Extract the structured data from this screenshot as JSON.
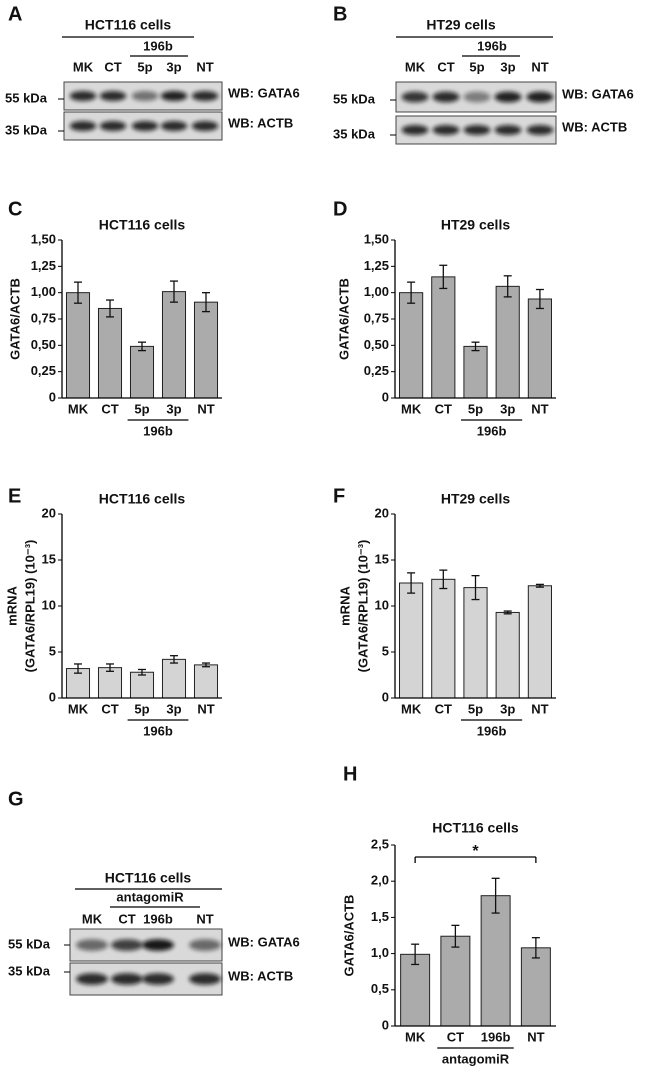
{
  "chart_data": [
    {
      "type": "bar",
      "panel": "C",
      "title": "HCT116 cells",
      "y_label": [
        "GATA6/ACTB"
      ],
      "categories": [
        "MK",
        "CT",
        "5p",
        "3p",
        "NT"
      ],
      "category_group": "196b",
      "values": [
        1.0,
        0.85,
        0.49,
        1.01,
        0.91
      ],
      "errors": [
        0.1,
        0.08,
        0.04,
        0.1,
        0.09
      ],
      "color": "#ababab",
      "ylim": [
        0,
        1.5
      ],
      "yticks": [
        0,
        {
          "value": 0.25,
          "label": "0,25"
        },
        {
          "value": 0.5,
          "label": "0,50"
        },
        {
          "value": 0.75,
          "label": "0,75"
        },
        {
          "value": 1.0,
          "label": "1,00"
        },
        {
          "value": 1.25,
          "label": "1,25"
        },
        {
          "value": 1.5,
          "label": "1,50"
        }
      ]
    },
    {
      "type": "bar",
      "panel": "D",
      "title": "HT29 cells",
      "y_label": [
        "GATA6/ACTB"
      ],
      "categories": [
        "MK",
        "CT",
        "5p",
        "3p",
        "NT"
      ],
      "category_group": "196b",
      "values": [
        1.0,
        1.15,
        0.49,
        1.06,
        0.94
      ],
      "errors": [
        0.1,
        0.11,
        0.04,
        0.1,
        0.09
      ],
      "color": "#ababab",
      "ylim": [
        0,
        1.5
      ],
      "yticks": [
        0,
        {
          "value": 0.25,
          "label": "0,25"
        },
        {
          "value": 0.5,
          "label": "0,50"
        },
        {
          "value": 0.75,
          "label": "0,75"
        },
        {
          "value": 1.0,
          "label": "1,00"
        },
        {
          "value": 1.25,
          "label": "1,25"
        },
        {
          "value": 1.5,
          "label": "1,50"
        }
      ]
    },
    {
      "type": "bar",
      "panel": "E",
      "title": "HCT116 cells",
      "y_label": [
        "mRNA",
        "(GATA6/RPL19) (10⁻³)"
      ],
      "categories": [
        "MK",
        "CT",
        "5p",
        "3p",
        "NT"
      ],
      "category_group": "196b",
      "values": [
        3.2,
        3.3,
        2.8,
        4.2,
        3.6
      ],
      "errors": [
        0.5,
        0.4,
        0.3,
        0.4,
        0.2
      ],
      "color": "#d4d4d4",
      "ylim": [
        0,
        20
      ],
      "yticks": [
        0,
        5,
        10,
        15,
        20
      ]
    },
    {
      "type": "bar",
      "panel": "F",
      "title": "HT29 cells",
      "y_label": [
        "mRNA",
        "(GATA6/RPL19) (10⁻³)"
      ],
      "categories": [
        "MK",
        "CT",
        "5p",
        "3p",
        "NT"
      ],
      "category_group": "196b",
      "values": [
        12.5,
        12.9,
        12.0,
        9.3,
        12.2
      ],
      "errors": [
        1.1,
        1.0,
        1.3,
        0.15,
        0.15
      ],
      "color": "#d4d4d4",
      "ylim": [
        0,
        20
      ],
      "yticks": [
        0,
        5,
        10,
        15,
        20
      ]
    },
    {
      "type": "bar",
      "panel": "H",
      "title": "HCT116 cells",
      "y_label": [
        "GATA6/ACTB"
      ],
      "categories": [
        "MK",
        "CT",
        "196b",
        "NT"
      ],
      "category_group": "antagomiR",
      "values": [
        0.99,
        1.24,
        1.8,
        1.08
      ],
      "errors": [
        0.14,
        0.15,
        0.24,
        0.14
      ],
      "color": "#ababab",
      "significance": "*",
      "ylim": [
        0,
        2.5
      ],
      "yticks": [
        0,
        {
          "value": 0.5,
          "label": "0,5"
        },
        {
          "value": 1.0,
          "label": "1,0"
        },
        {
          "value": 1.5,
          "label": "1,5"
        },
        {
          "value": 2.0,
          "label": "2,0"
        },
        {
          "value": 2.5,
          "label": "2,5"
        }
      ]
    }
  ],
  "blots": [
    {
      "panel": "A",
      "title": "HCT116 cells",
      "group": "196b",
      "lanes": [
        "MK",
        "CT",
        "5p",
        "3p",
        "NT"
      ],
      "markers": [
        "55 kDa",
        "35 kDa"
      ],
      "probes": [
        "WB: GATA6",
        "WB: ACTB"
      ]
    },
    {
      "panel": "B",
      "title": "HT29 cells",
      "group": "196b",
      "lanes": [
        "MK",
        "CT",
        "5p",
        "3p",
        "NT"
      ],
      "markers": [
        "55 kDa",
        "35 kDa"
      ],
      "probes": [
        "WB: GATA6",
        "WB: ACTB"
      ]
    },
    {
      "panel": "G",
      "title": "HCT116 cells",
      "group": "antagomiR",
      "lanes": [
        "MK",
        "CT",
        "196b",
        "NT"
      ],
      "markers": [
        "55 kDa",
        "35 kDa"
      ],
      "probes": [
        "WB: GATA6",
        "WB: ACTB"
      ]
    }
  ]
}
